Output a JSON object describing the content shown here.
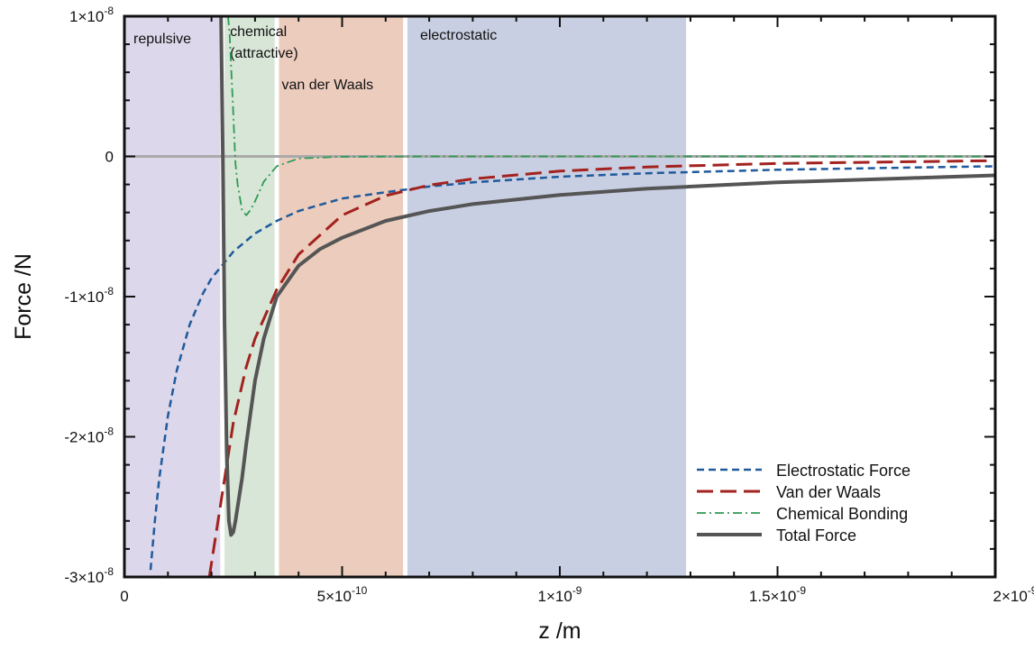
{
  "chart_data": {
    "type": "line",
    "title": "",
    "xlabel": "z /m",
    "ylabel": "Force /N",
    "xlim": [
      0,
      2e-09
    ],
    "ylim": [
      -3e-08,
      1e-08
    ],
    "grid": false,
    "legend_position": "bottom-right",
    "x_ticks": [
      {
        "value": 0,
        "label": "0"
      },
      {
        "value": 5e-10,
        "label": "5×10",
        "exp": "-10"
      },
      {
        "value": 1e-09,
        "label": "1×10",
        "exp": "-9"
      },
      {
        "value": 1.5e-09,
        "label": "1.5×10",
        "exp": "-9"
      },
      {
        "value": 2e-09,
        "label": "2×10",
        "exp": "-9"
      }
    ],
    "y_ticks": [
      {
        "value": 1e-08,
        "label": "1×10",
        "exp": "-8"
      },
      {
        "value": 0,
        "label": "0",
        "exp": ""
      },
      {
        "value": -1e-08,
        "label": "-1×10",
        "exp": "-8"
      },
      {
        "value": -2e-08,
        "label": "-2×10",
        "exp": "-8"
      },
      {
        "value": -3e-08,
        "label": "-3×10",
        "exp": "-8"
      }
    ],
    "regions": [
      {
        "name": "repulsive",
        "label": "repulsive",
        "x0": 0,
        "x1": 2.2e-10,
        "color": "#dcd7ea"
      },
      {
        "name": "chemical",
        "label": "chemical",
        "label2": "(attractive)",
        "x0": 2.3e-10,
        "x1": 3.45e-10,
        "color": "#d7e6d6"
      },
      {
        "name": "van-der-waals",
        "label": "van der Waals",
        "x0": 3.55e-10,
        "x1": 6.4e-10,
        "color": "#ecccbd"
      },
      {
        "name": "electrostatic",
        "label": "electrostatic",
        "x0": 6.5e-10,
        "x1": 1.29e-09,
        "color": "#c9cfe2"
      }
    ],
    "series": [
      {
        "name": "Electrostatic Force",
        "color": "#1f5a9c",
        "style": "dashed",
        "x": [
          6e-11,
          7e-11,
          8e-11,
          1e-10,
          1.2e-10,
          1.5e-10,
          1.8e-10,
          2e-10,
          2.5e-10,
          3e-10,
          3.5e-10,
          4e-10,
          5e-10,
          6e-10,
          7e-10,
          8e-10,
          1e-09,
          1.2e-09,
          1.5e-09,
          1.8e-09,
          2e-09
        ],
        "y": [
          -2.95e-08,
          -2.6e-08,
          -2.3e-08,
          -1.85e-08,
          -1.53e-08,
          -1.2e-08,
          -9.8e-09,
          -8.7e-09,
          -6.8e-09,
          -5.5e-09,
          -4.6e-09,
          -3.9e-09,
          -3e-09,
          -2.55e-09,
          -2.15e-09,
          -1.85e-09,
          -1.45e-09,
          -1.2e-09,
          -9.5e-10,
          -8e-10,
          -7e-10
        ]
      },
      {
        "name": "Van der Waals",
        "color": "#a3221f",
        "style": "dashed-long",
        "x": [
          1.95e-10,
          2e-10,
          2.2e-10,
          2.5e-10,
          2.8e-10,
          3e-10,
          3.5e-10,
          4e-10,
          5e-10,
          6e-10,
          7e-10,
          8e-10,
          1e-09,
          1.2e-09,
          1.5e-09,
          1.8e-09,
          2e-09
        ],
        "y": [
          -3e-08,
          -2.9e-08,
          -2.5e-08,
          -1.9e-08,
          -1.5e-08,
          -1.3e-08,
          -9.5e-09,
          -7e-09,
          -4.2e-09,
          -2.8e-09,
          -2.05e-09,
          -1.6e-09,
          -1.05e-09,
          -7.5e-10,
          -5e-10,
          -3.8e-10,
          -3e-10
        ]
      },
      {
        "name": "Chemical Bonding",
        "color": "#2e9a55",
        "style": "dash-dot",
        "x": [
          2.38e-10,
          2.42e-10,
          2.5e-10,
          2.55e-10,
          2.6e-10,
          2.7e-10,
          2.8e-10,
          2.9e-10,
          3e-10,
          3.2e-10,
          3.5e-10,
          4e-10,
          5e-10,
          7e-10,
          1e-09,
          1.5e-09,
          2e-09
        ],
        "y": [
          1e-08,
          8.5e-09,
          3e-09,
          -5e-10,
          -2e-09,
          -3.8e-09,
          -4.2e-09,
          -3.8e-09,
          -3.2e-09,
          -1.8e-09,
          -7e-10,
          -1.5e-10,
          -2e-11,
          0,
          0,
          0,
          0
        ]
      },
      {
        "name": "Total Force",
        "color": "#555555",
        "style": "solid",
        "x": [
          2.22e-10,
          2.26e-10,
          2.3e-10,
          2.35e-10,
          2.4e-10,
          2.45e-10,
          2.5e-10,
          2.55e-10,
          2.6e-10,
          2.7e-10,
          2.8e-10,
          3e-10,
          3.2e-10,
          3.5e-10,
          4e-10,
          4.5e-10,
          5e-10,
          6e-10,
          7e-10,
          8e-10,
          1e-09,
          1.2e-09,
          1.5e-09,
          1.8e-09,
          2e-09
        ],
        "y": [
          1e-08,
          0,
          -1.2e-08,
          -2.1e-08,
          -2.6e-08,
          -2.7e-08,
          -2.68e-08,
          -2.6e-08,
          -2.5e-08,
          -2.3e-08,
          -2.05e-08,
          -1.6e-08,
          -1.3e-08,
          -1e-08,
          -7.8e-09,
          -6.6e-09,
          -5.8e-09,
          -4.6e-09,
          -3.9e-09,
          -3.4e-09,
          -2.75e-09,
          -2.3e-09,
          -1.85e-09,
          -1.55e-09,
          -1.35e-09
        ]
      }
    ]
  }
}
